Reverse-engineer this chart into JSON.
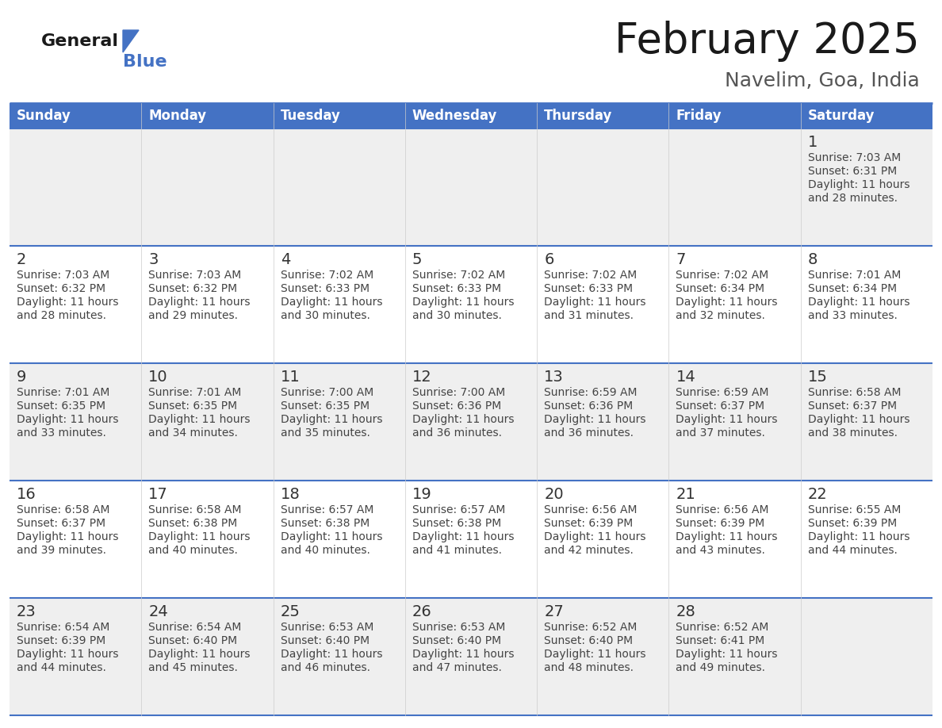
{
  "title": "February 2025",
  "subtitle": "Navelim, Goa, India",
  "days_of_week": [
    "Sunday",
    "Monday",
    "Tuesday",
    "Wednesday",
    "Thursday",
    "Friday",
    "Saturday"
  ],
  "header_bg": "#4472C4",
  "header_text": "#FFFFFF",
  "row_bg_odd": "#EFEFEF",
  "row_bg_even": "#FFFFFF",
  "border_color": "#4472C4",
  "day_number_color": "#333333",
  "cell_text_color": "#444444",
  "title_color": "#1a1a1a",
  "subtitle_color": "#555555",
  "general_blue_text": "#1a1a1a",
  "general_blue_triangle": "#4472C4",
  "general_blue_word": "#4472C4",
  "calendar_data": [
    [
      null,
      null,
      null,
      null,
      null,
      null,
      {
        "day": 1,
        "sunrise": "7:03 AM",
        "sunset": "6:31 PM",
        "daylight": "11 hours and 28 minutes."
      }
    ],
    [
      {
        "day": 2,
        "sunrise": "7:03 AM",
        "sunset": "6:32 PM",
        "daylight": "11 hours and 28 minutes."
      },
      {
        "day": 3,
        "sunrise": "7:03 AM",
        "sunset": "6:32 PM",
        "daylight": "11 hours and 29 minutes."
      },
      {
        "day": 4,
        "sunrise": "7:02 AM",
        "sunset": "6:33 PM",
        "daylight": "11 hours and 30 minutes."
      },
      {
        "day": 5,
        "sunrise": "7:02 AM",
        "sunset": "6:33 PM",
        "daylight": "11 hours and 30 minutes."
      },
      {
        "day": 6,
        "sunrise": "7:02 AM",
        "sunset": "6:33 PM",
        "daylight": "11 hours and 31 minutes."
      },
      {
        "day": 7,
        "sunrise": "7:02 AM",
        "sunset": "6:34 PM",
        "daylight": "11 hours and 32 minutes."
      },
      {
        "day": 8,
        "sunrise": "7:01 AM",
        "sunset": "6:34 PM",
        "daylight": "11 hours and 33 minutes."
      }
    ],
    [
      {
        "day": 9,
        "sunrise": "7:01 AM",
        "sunset": "6:35 PM",
        "daylight": "11 hours and 33 minutes."
      },
      {
        "day": 10,
        "sunrise": "7:01 AM",
        "sunset": "6:35 PM",
        "daylight": "11 hours and 34 minutes."
      },
      {
        "day": 11,
        "sunrise": "7:00 AM",
        "sunset": "6:35 PM",
        "daylight": "11 hours and 35 minutes."
      },
      {
        "day": 12,
        "sunrise": "7:00 AM",
        "sunset": "6:36 PM",
        "daylight": "11 hours and 36 minutes."
      },
      {
        "day": 13,
        "sunrise": "6:59 AM",
        "sunset": "6:36 PM",
        "daylight": "11 hours and 36 minutes."
      },
      {
        "day": 14,
        "sunrise": "6:59 AM",
        "sunset": "6:37 PM",
        "daylight": "11 hours and 37 minutes."
      },
      {
        "day": 15,
        "sunrise": "6:58 AM",
        "sunset": "6:37 PM",
        "daylight": "11 hours and 38 minutes."
      }
    ],
    [
      {
        "day": 16,
        "sunrise": "6:58 AM",
        "sunset": "6:37 PM",
        "daylight": "11 hours and 39 minutes."
      },
      {
        "day": 17,
        "sunrise": "6:58 AM",
        "sunset": "6:38 PM",
        "daylight": "11 hours and 40 minutes."
      },
      {
        "day": 18,
        "sunrise": "6:57 AM",
        "sunset": "6:38 PM",
        "daylight": "11 hours and 40 minutes."
      },
      {
        "day": 19,
        "sunrise": "6:57 AM",
        "sunset": "6:38 PM",
        "daylight": "11 hours and 41 minutes."
      },
      {
        "day": 20,
        "sunrise": "6:56 AM",
        "sunset": "6:39 PM",
        "daylight": "11 hours and 42 minutes."
      },
      {
        "day": 21,
        "sunrise": "6:56 AM",
        "sunset": "6:39 PM",
        "daylight": "11 hours and 43 minutes."
      },
      {
        "day": 22,
        "sunrise": "6:55 AM",
        "sunset": "6:39 PM",
        "daylight": "11 hours and 44 minutes."
      }
    ],
    [
      {
        "day": 23,
        "sunrise": "6:54 AM",
        "sunset": "6:39 PM",
        "daylight": "11 hours and 44 minutes."
      },
      {
        "day": 24,
        "sunrise": "6:54 AM",
        "sunset": "6:40 PM",
        "daylight": "11 hours and 45 minutes."
      },
      {
        "day": 25,
        "sunrise": "6:53 AM",
        "sunset": "6:40 PM",
        "daylight": "11 hours and 46 minutes."
      },
      {
        "day": 26,
        "sunrise": "6:53 AM",
        "sunset": "6:40 PM",
        "daylight": "11 hours and 47 minutes."
      },
      {
        "day": 27,
        "sunrise": "6:52 AM",
        "sunset": "6:40 PM",
        "daylight": "11 hours and 48 minutes."
      },
      {
        "day": 28,
        "sunrise": "6:52 AM",
        "sunset": "6:41 PM",
        "daylight": "11 hours and 49 minutes."
      },
      null
    ]
  ]
}
